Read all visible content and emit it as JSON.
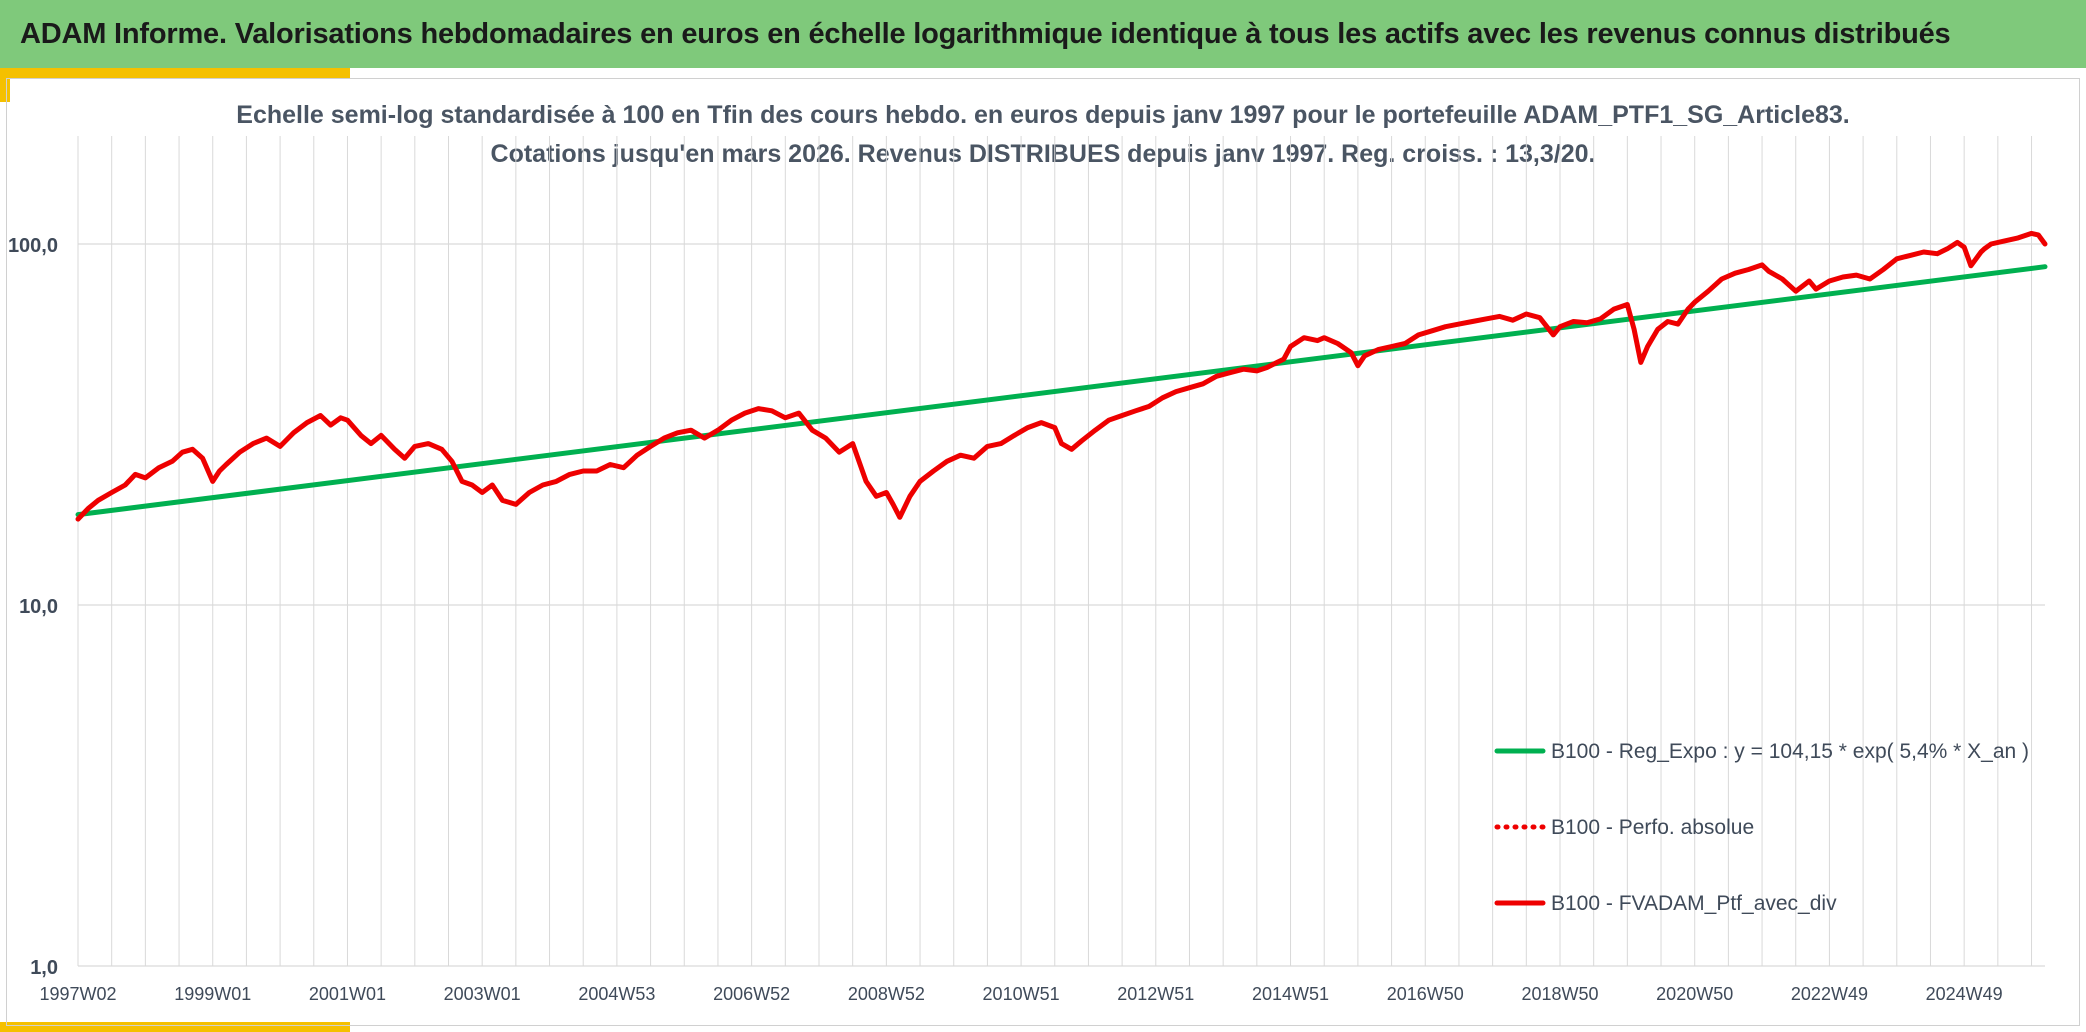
{
  "banner": {
    "title": "ADAM Informe. Valorisations hebdomadaires en euros en échelle logarithmique identique à tous les actifs avec les revenus connus distribués"
  },
  "colors": {
    "banner_bg": "#7fc97b",
    "accent_yellow": "#f5c000",
    "regression_line": "#00b050",
    "portfolio_line": "#ee0000",
    "gridline": "#d9d9d9",
    "axis_text": "#3f4a59"
  },
  "chart_data": {
    "type": "line",
    "title_line1": "Echelle semi-log standardisée à 100 en Tfin des cours hebdo. en euros depuis janv 1997 pour le portefeuille ADAM_PTF1_SG_Article83.",
    "title_line2": "Cotations jusqu'en mars 2026. Revenus DISTRIBUES depuis janv 1997. Reg. croiss. : 13,3/20.",
    "y_scale": "log",
    "ylim": [
      1,
      200
    ],
    "y_ticks": [
      1,
      10,
      100
    ],
    "y_tick_labels": [
      "1,0",
      "10,0",
      "100,0"
    ],
    "xlim": [
      1997.0,
      2026.2
    ],
    "x_tick_positions": [
      1997.0,
      1999.0,
      2001.0,
      2003.0,
      2005.0,
      2007.0,
      2009.0,
      2011.0,
      2013.0,
      2015.0,
      2017.0,
      2019.0,
      2021.0,
      2023.0,
      2025.0
    ],
    "x_tick_labels": [
      "1997W02",
      "1999W01",
      "2001W01",
      "2003W01",
      "2004W53",
      "2006W52",
      "2008W52",
      "2010W51",
      "2012W51",
      "2014W51",
      "2016W50",
      "2018W50",
      "2020W50",
      "2022W49",
      "2024W49"
    ],
    "grid": true,
    "legend_position": "bottom-right",
    "series": [
      {
        "name": "B100 - Reg_Expo : y = 104,15 * exp( 5,4% *  X_an )",
        "style": "solid",
        "color": "#00b050",
        "x": [
          1997.0,
          2026.2
        ],
        "y": [
          17.8,
          86.5
        ]
      },
      {
        "name": "B100 - Perfo. absolue",
        "style": "dotted",
        "color": "#ee0000",
        "x": [],
        "y": []
      },
      {
        "name": "B100 - FVADAM_Ptf_avec_div",
        "style": "solid",
        "color": "#ee0000",
        "x": [
          1997.0,
          1997.15,
          1997.3,
          1997.5,
          1997.7,
          1997.85,
          1998.0,
          1998.2,
          1998.4,
          1998.55,
          1998.7,
          1998.85,
          1999.0,
          1999.1,
          1999.2,
          1999.4,
          1999.6,
          1999.8,
          2000.0,
          2000.2,
          2000.4,
          2000.6,
          2000.75,
          2000.9,
          2001.0,
          2001.2,
          2001.35,
          2001.5,
          2001.7,
          2001.85,
          2002.0,
          2002.2,
          2002.4,
          2002.55,
          2002.7,
          2002.85,
          2003.0,
          2003.15,
          2003.3,
          2003.5,
          2003.7,
          2003.9,
          2004.1,
          2004.3,
          2004.5,
          2004.7,
          2004.9,
          2005.1,
          2005.3,
          2005.5,
          2005.7,
          2005.9,
          2006.1,
          2006.3,
          2006.5,
          2006.7,
          2006.9,
          2007.1,
          2007.3,
          2007.5,
          2007.7,
          2007.9,
          2008.1,
          2008.3,
          2008.5,
          2008.7,
          2008.85,
          2009.0,
          2009.1,
          2009.2,
          2009.35,
          2009.5,
          2009.7,
          2009.9,
          2010.1,
          2010.3,
          2010.5,
          2010.7,
          2010.9,
          2011.1,
          2011.3,
          2011.5,
          2011.6,
          2011.75,
          2011.9,
          2012.1,
          2012.3,
          2012.5,
          2012.7,
          2012.9,
          2013.1,
          2013.3,
          2013.5,
          2013.7,
          2013.9,
          2014.1,
          2014.3,
          2014.5,
          2014.65,
          2014.8,
          2014.9,
          2015.0,
          2015.2,
          2015.4,
          2015.5,
          2015.7,
          2015.9,
          2016.0,
          2016.1,
          2016.3,
          2016.5,
          2016.7,
          2016.9,
          2017.1,
          2017.3,
          2017.5,
          2017.7,
          2017.9,
          2018.1,
          2018.3,
          2018.5,
          2018.7,
          2018.9,
          2019.0,
          2019.2,
          2019.4,
          2019.6,
          2019.8,
          2020.0,
          2020.1,
          2020.2,
          2020.3,
          2020.45,
          2020.6,
          2020.75,
          2020.9,
          2021.0,
          2021.2,
          2021.4,
          2021.6,
          2021.8,
          2022.0,
          2022.1,
          2022.3,
          2022.5,
          2022.7,
          2022.8,
          2023.0,
          2023.2,
          2023.4,
          2023.6,
          2023.8,
          2024.0,
          2024.2,
          2024.4,
          2024.6,
          2024.75,
          2024.9,
          2025.0,
          2025.1,
          2025.25,
          2025.3,
          2025.4,
          2025.6,
          2025.8,
          2026.0,
          2026.1,
          2026.2
        ],
        "y": [
          17.3,
          18.5,
          19.5,
          20.5,
          21.5,
          23.0,
          22.5,
          24.0,
          25.0,
          26.5,
          27.0,
          25.5,
          22.0,
          23.5,
          24.5,
          26.5,
          28.0,
          29.0,
          27.5,
          30.0,
          32.0,
          33.5,
          31.5,
          33.0,
          32.5,
          29.5,
          28.0,
          29.5,
          27.0,
          25.5,
          27.5,
          28.0,
          27.0,
          25.0,
          22.0,
          21.5,
          20.5,
          21.5,
          19.5,
          19.0,
          20.5,
          21.5,
          22.0,
          23.0,
          23.5,
          23.5,
          24.5,
          24.0,
          26.0,
          27.5,
          29.0,
          30.0,
          30.5,
          29.0,
          30.5,
          32.5,
          34.0,
          35.0,
          34.5,
          33.0,
          34.0,
          30.5,
          29.0,
          26.5,
          28.0,
          22.0,
          20.0,
          20.5,
          19.0,
          17.5,
          20.0,
          22.0,
          23.5,
          25.0,
          26.0,
          25.5,
          27.5,
          28.0,
          29.5,
          31.0,
          32.0,
          31.0,
          28.0,
          27.0,
          28.5,
          30.5,
          32.5,
          33.5,
          34.5,
          35.5,
          37.5,
          39.0,
          40.0,
          41.0,
          43.0,
          44.0,
          45.0,
          44.5,
          45.5,
          47.0,
          48.0,
          52.0,
          55.0,
          54.0,
          55.0,
          53.0,
          50.0,
          46.0,
          49.0,
          51.0,
          52.0,
          53.0,
          56.0,
          57.5,
          59.0,
          60.0,
          61.0,
          62.0,
          63.0,
          61.5,
          64.0,
          62.5,
          56.0,
          59.0,
          61.0,
          60.5,
          62.0,
          66.0,
          68.0,
          58.0,
          47.0,
          52.0,
          58.0,
          61.0,
          60.0,
          66.0,
          69.0,
          74.0,
          80.0,
          83.0,
          85.0,
          87.5,
          84.0,
          80.0,
          74.0,
          79.0,
          75.0,
          79.0,
          81.0,
          82.0,
          80.0,
          85.0,
          91.0,
          93.0,
          95.0,
          94.0,
          97.0,
          101.0,
          98.0,
          87.0,
          95.0,
          97.0,
          100.0,
          102.0,
          104.0,
          107.0,
          106.0,
          100.0
        ]
      }
    ]
  }
}
